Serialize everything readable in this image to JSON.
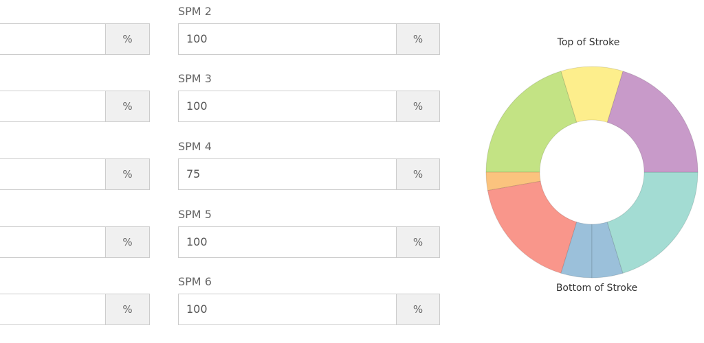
{
  "left_fields": [
    {
      "unit": "%"
    },
    {
      "unit": "%"
    },
    {
      "unit": "%"
    },
    {
      "unit": "%"
    },
    {
      "unit": "%"
    }
  ],
  "fields": [
    {
      "label": "SPM 2",
      "value": 100,
      "unit": "%"
    },
    {
      "label": "SPM 3",
      "value": 100,
      "unit": "%"
    },
    {
      "label": "SPM 4",
      "value": 75,
      "unit": "%"
    },
    {
      "label": "SPM 5",
      "value": 100,
      "unit": "%"
    },
    {
      "label": "SPM 6",
      "value": 100,
      "unit": "%"
    }
  ],
  "chart_data": {
    "type": "pie",
    "top_label": "Top of Stroke",
    "bottom_label": "Bottom of Stroke",
    "values": [
      34,
      73,
      73,
      17,
      17,
      63,
      10,
      73
    ],
    "colors": [
      "#fdee8c",
      "#c89ac9",
      "#a3dcd3",
      "#9bc0da",
      "#9bc0da",
      "#f9968b",
      "#fbc37e",
      "#c3e384"
    ]
  }
}
